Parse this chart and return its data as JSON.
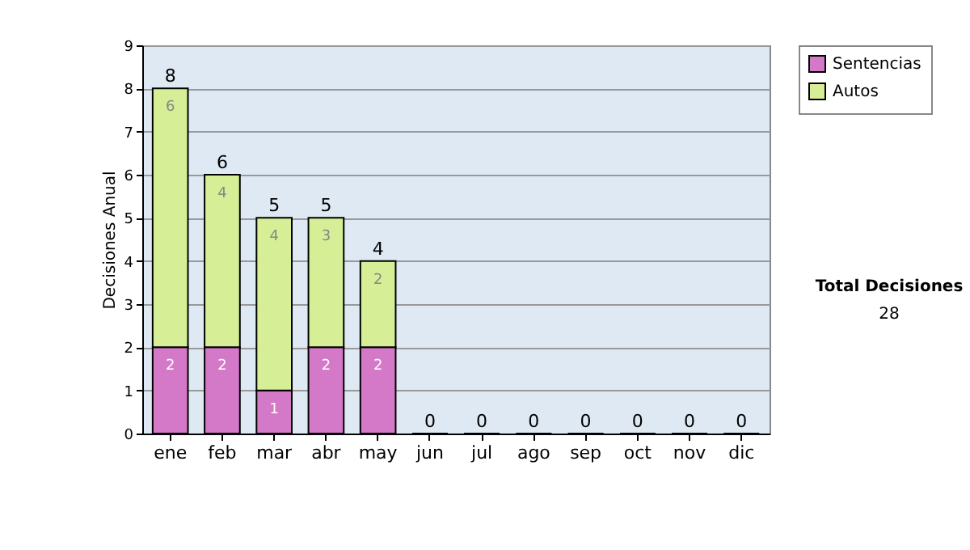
{
  "chart_data": {
    "type": "bar",
    "stacked": true,
    "ylabel": "Decisiones Anual",
    "categories": [
      "ene",
      "feb",
      "mar",
      "abr",
      "may",
      "jun",
      "jul",
      "ago",
      "sep",
      "oct",
      "nov",
      "dic"
    ],
    "series": [
      {
        "name": "Sentencias",
        "color": "#d478c8",
        "values": [
          2,
          2,
          1,
          2,
          2,
          0,
          0,
          0,
          0,
          0,
          0,
          0
        ],
        "value_labels": [
          "2",
          "2",
          "1",
          "2",
          "2",
          null,
          null,
          null,
          null,
          null,
          null,
          null
        ]
      },
      {
        "name": "Autos",
        "color": "#d6ee96",
        "values": [
          6,
          4,
          4,
          3,
          2,
          0,
          0,
          0,
          0,
          0,
          0,
          0
        ],
        "value_labels": [
          "6",
          "4",
          "4",
          "3",
          "2",
          null,
          null,
          null,
          null,
          null,
          null,
          null
        ]
      }
    ],
    "totals": [
      "8",
      "6",
      "5",
      "5",
      "4",
      "0",
      "0",
      "0",
      "0",
      "0",
      "0",
      "0"
    ],
    "ylim": [
      0,
      9
    ],
    "yticks": [
      0,
      1,
      2,
      3,
      4,
      5,
      6,
      7,
      8,
      9
    ],
    "grid": "y",
    "legend": "right",
    "annotations": [
      "Total Decisiones",
      "28"
    ]
  }
}
